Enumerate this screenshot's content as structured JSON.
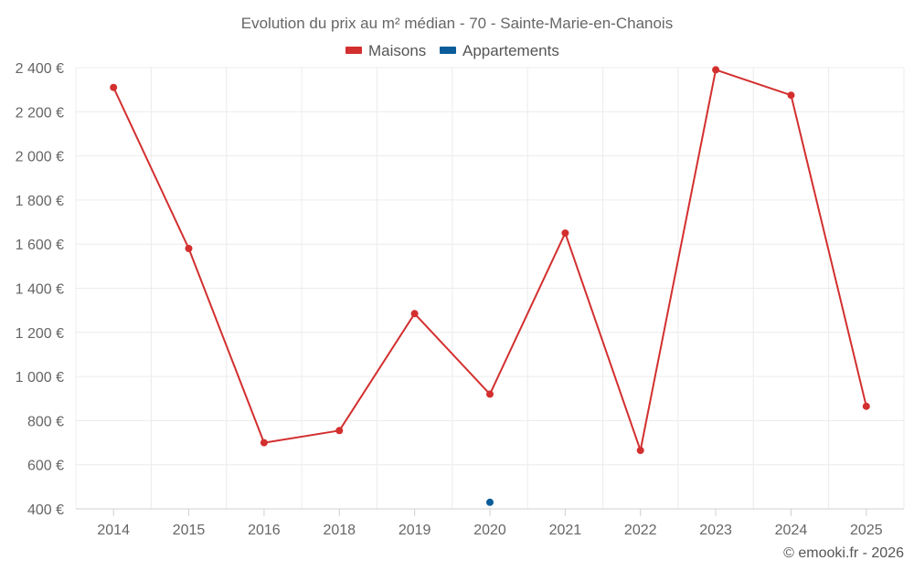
{
  "chart_data": {
    "type": "line",
    "title": "Evolution du prix au m² médian - 70 - Sainte-Marie-en-Chanois",
    "categories": [
      "2014",
      "2015",
      "2016",
      "2018",
      "2019",
      "2020",
      "2021",
      "2022",
      "2023",
      "2024",
      "2025"
    ],
    "y_ticks": [
      "400 €",
      "600 €",
      "800 €",
      "1 000 €",
      "1 200 €",
      "1 400 €",
      "1 600 €",
      "1 800 €",
      "2 000 €",
      "2 200 €",
      "2 400 €"
    ],
    "y_tick_values": [
      400,
      600,
      800,
      1000,
      1200,
      1400,
      1600,
      1800,
      2000,
      2200,
      2400
    ],
    "ylim": [
      400,
      2400
    ],
    "grid": true,
    "legend_position": "top-center",
    "series": [
      {
        "name": "Maisons",
        "color": "#d32f2f",
        "values": [
          2310,
          1580,
          700,
          755,
          1285,
          920,
          1650,
          665,
          2390,
          2275,
          865
        ]
      },
      {
        "name": "Appartements",
        "color": "#0b5d9a",
        "values": [
          null,
          null,
          null,
          null,
          null,
          430,
          null,
          null,
          null,
          null,
          null
        ]
      }
    ],
    "credit": "© emooki.fr - 2026"
  }
}
